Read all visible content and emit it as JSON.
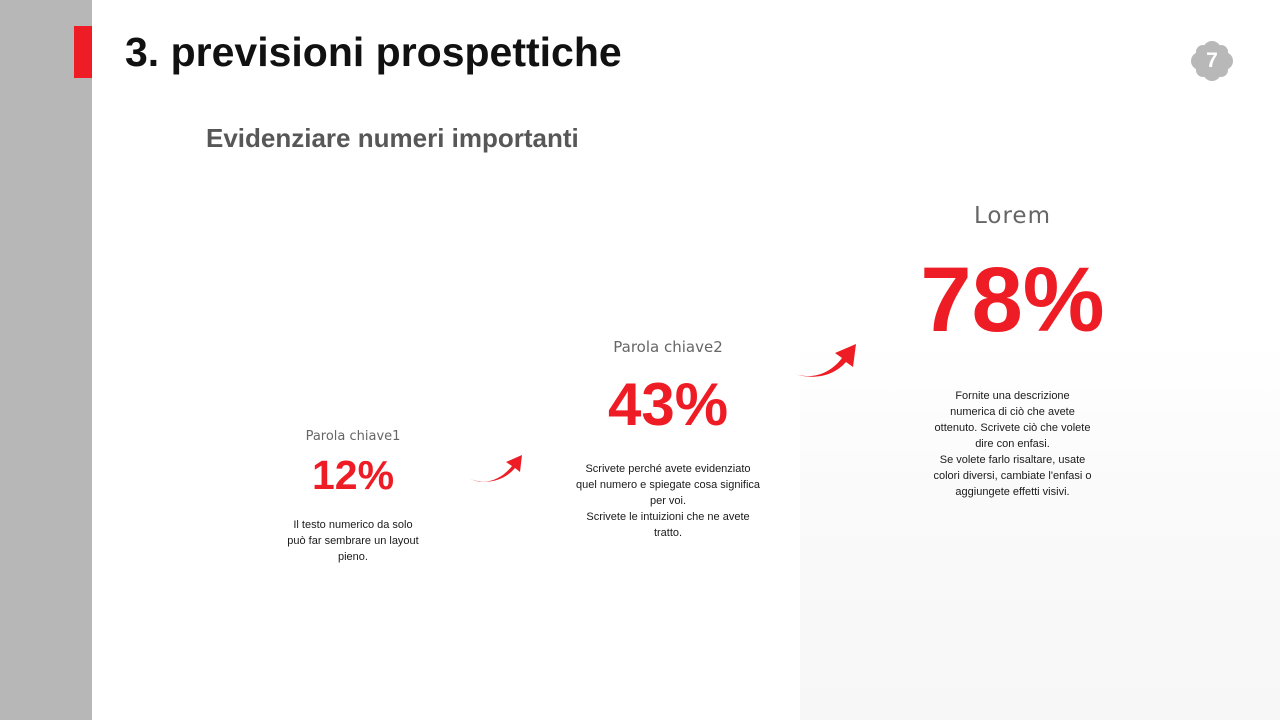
{
  "slide": {
    "title": "3. previsioni prospettiche",
    "page_number": "7",
    "subtitle": "Evidenziare numeri importanti"
  },
  "stats": [
    {
      "label": "Parola chiave1",
      "value": "12%",
      "description": "Il testo numerico da solo\npuò far sembrare un layout\npieno."
    },
    {
      "label": "Parola chiave2",
      "value": "43%",
      "description": "Scrivete perché avete evidenziato\nquel numero e spiegate cosa significa\nper voi.\nScrivete le intuizioni che ne avete\ntratto."
    },
    {
      "label": "Lorem",
      "value": "78%",
      "description": "Fornite una descrizione\nnumerica di ciò che avete\nottenuto. Scrivete ciò che volete\ndire con enfasi.\nSe volete farlo risaltare, usate\ncolori diversi, cambiate l'enfasi o\naggiungete effetti visivi."
    }
  ],
  "icons": {
    "badge": "cloud-shape-icon",
    "arrows": "curved-arrow-icon"
  },
  "colors": {
    "accent": "#ee1c24",
    "sidebar": "#b7b7b7",
    "title": "#111111",
    "subtitle": "#575757",
    "badge": "#b8b8b8"
  }
}
